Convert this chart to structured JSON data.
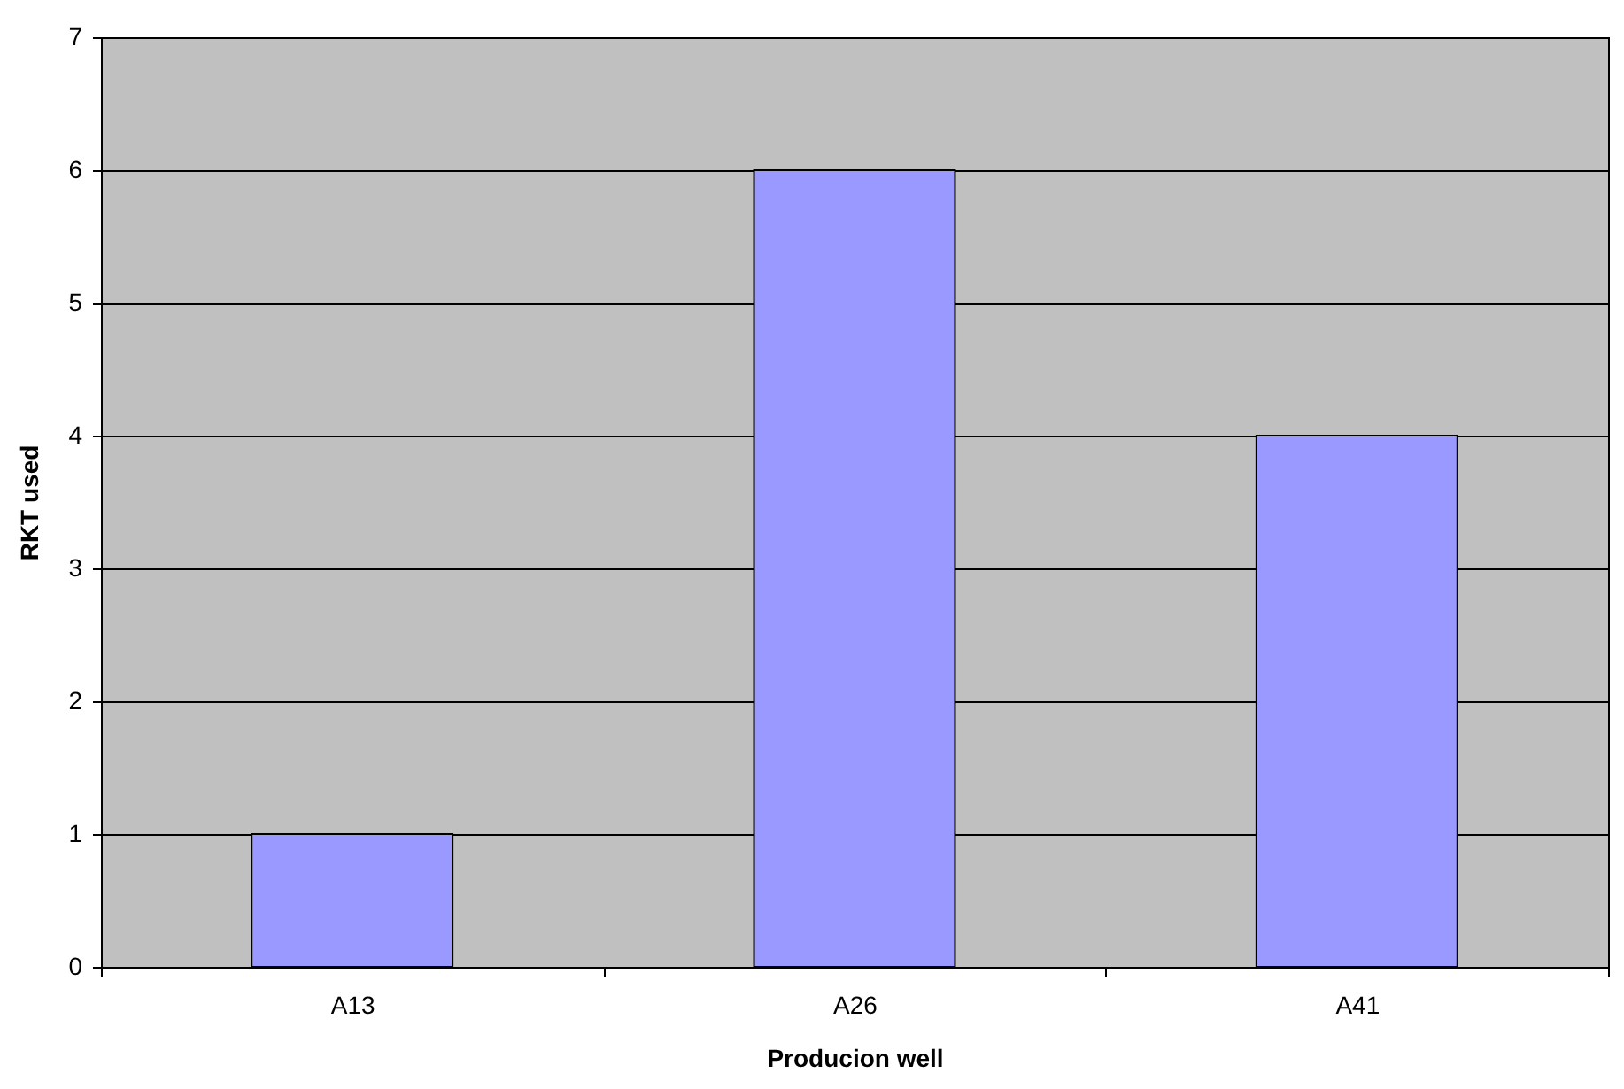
{
  "chart_data": {
    "type": "bar",
    "xlabel": "Producion well",
    "ylabel": "RKT used",
    "categories": [
      "A13",
      "A26",
      "A41"
    ],
    "values": [
      1,
      6,
      4
    ],
    "color": "#9999ff",
    "ylim": [
      0,
      7
    ],
    "yticks": [
      0,
      1,
      2,
      3,
      4,
      5,
      6,
      7
    ],
    "grid": "y",
    "legend": false
  }
}
